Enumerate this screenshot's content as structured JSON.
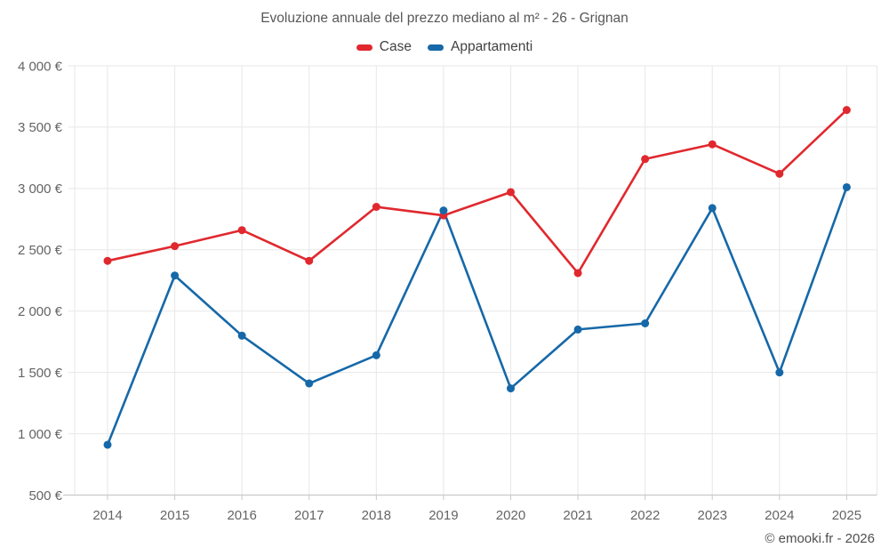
{
  "header": {
    "title": "Evoluzione annuale del prezzo mediano al m² - 26 - Grignan"
  },
  "legend": [
    {
      "label": "Case",
      "color": "#e0282e"
    },
    {
      "label": "Appartamenti",
      "color": "#1668a8"
    }
  ],
  "footer": {
    "credit": "© emooki.fr - 2026"
  },
  "colors": {
    "case_red": "#e0282e",
    "appartamenti_blue": "#1668a8",
    "grid": "#e7e7e7",
    "axis": "#c9c9c9",
    "label_gray": "#646466"
  },
  "chart_data": {
    "type": "line",
    "title": "Evoluzione annuale del prezzo mediano al m² - 26 - Grignan",
    "x": [
      "2014",
      "2015",
      "2016",
      "2017",
      "2018",
      "2019",
      "2020",
      "2021",
      "2022",
      "2023",
      "2024",
      "2025"
    ],
    "yticks": [
      "500 €",
      "1 000 €",
      "1 500 €",
      "2 000 €",
      "2 500 €",
      "3 000 €",
      "3 500 €",
      "4 000 €"
    ],
    "ylim": [
      500,
      4000
    ],
    "grid": true,
    "legend_position": "top",
    "series": [
      {
        "name": "Case",
        "color": "#e0282e",
        "values": [
          2410,
          2530,
          2660,
          2410,
          2850,
          2780,
          2970,
          2310,
          3240,
          3360,
          3120,
          3640
        ]
      },
      {
        "name": "Appartamenti",
        "color": "#1668a8",
        "values": [
          910,
          2290,
          1800,
          1410,
          1640,
          2820,
          1370,
          1850,
          1900,
          2840,
          1500,
          3010
        ]
      }
    ]
  }
}
